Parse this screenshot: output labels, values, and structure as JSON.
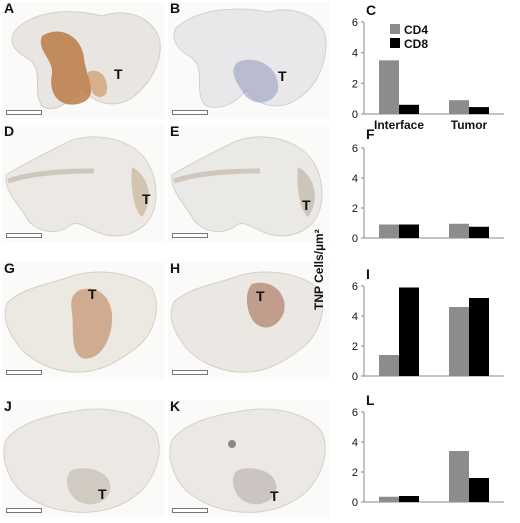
{
  "micrographs": [
    {
      "label": "A",
      "marker": "T",
      "stain": "#b8743d",
      "intensity": 0.85
    },
    {
      "label": "B",
      "marker": "T",
      "stain": "#8a8fb8",
      "intensity": 0.35
    },
    {
      "label": "D",
      "marker": "T",
      "stain": "#b9a07a",
      "intensity": 0.2
    },
    {
      "label": "E",
      "marker": "T",
      "stain": "#a89a86",
      "intensity": 0.15
    },
    {
      "label": "G",
      "marker": "T",
      "stain": "#b9794a",
      "intensity": 0.5
    },
    {
      "label": "H",
      "marker": "T",
      "stain": "#a46a52",
      "intensity": 0.45
    },
    {
      "label": "J",
      "marker": "T",
      "stain": "#a99a8a",
      "intensity": 0.2
    },
    {
      "label": "K",
      "marker": "T",
      "stain": "#9d8f86",
      "intensity": 0.2
    }
  ],
  "shared_ylabel": "TNP Cells/µm²",
  "chart_data": [
    {
      "panel": "C",
      "type": "bar",
      "categories": [
        "Interface",
        "Tumor"
      ],
      "series": [
        {
          "name": "CD4",
          "values": [
            3.5,
            0.9
          ]
        },
        {
          "name": "CD8",
          "values": [
            0.6,
            0.45
          ]
        }
      ],
      "ylim": [
        0,
        6
      ],
      "yticks": [
        0,
        2,
        4,
        6
      ],
      "legend": "top-left",
      "show_xticklabels": true
    },
    {
      "panel": "F",
      "type": "bar",
      "categories": [
        "Interface",
        "Tumor"
      ],
      "series": [
        {
          "name": "CD4",
          "values": [
            0.9,
            0.95
          ]
        },
        {
          "name": "CD8",
          "values": [
            0.9,
            0.75
          ]
        }
      ],
      "ylim": [
        0,
        6
      ],
      "yticks": [
        0,
        2,
        4,
        6
      ],
      "show_xticklabels": false
    },
    {
      "panel": "I",
      "type": "bar",
      "categories": [
        "Interface",
        "Tumor"
      ],
      "series": [
        {
          "name": "CD4",
          "values": [
            1.4,
            4.6
          ]
        },
        {
          "name": "CD8",
          "values": [
            5.9,
            5.2
          ]
        }
      ],
      "ylim": [
        0,
        6
      ],
      "yticks": [
        0,
        2,
        4,
        6
      ],
      "show_xticklabels": false
    },
    {
      "panel": "L",
      "type": "bar",
      "categories": [
        "Interface",
        "Tumor"
      ],
      "series": [
        {
          "name": "CD4",
          "values": [
            0.35,
            3.4
          ]
        },
        {
          "name": "CD8",
          "values": [
            0.4,
            1.6
          ]
        }
      ],
      "ylim": [
        0,
        6
      ],
      "yticks": [
        0,
        2,
        4,
        6
      ],
      "show_xticklabels": false
    }
  ],
  "colors": {
    "CD4": "#8c8c8c",
    "CD8": "#000000",
    "axis": "#888888"
  }
}
